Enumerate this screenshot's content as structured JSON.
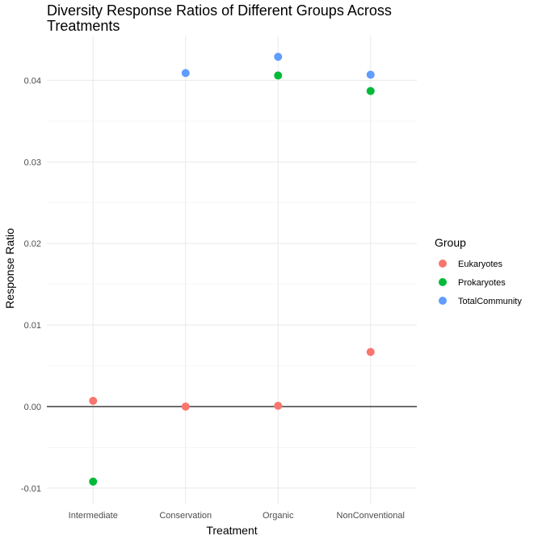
{
  "chart_data": {
    "type": "scatter",
    "title_line1": "Diversity Response Ratios of Different Groups Across",
    "title_line2": "Treatments",
    "xlabel": "Treatment",
    "ylabel": "Response Ratio",
    "categories": [
      "Intermediate",
      "Conservation",
      "Organic",
      "NonConventional"
    ],
    "ylim": [
      -0.012,
      0.0455
    ],
    "yticks": [
      -0.01,
      0.0,
      0.01,
      0.02,
      0.03,
      0.04
    ],
    "ytick_labels": [
      "-0.01",
      "0.00",
      "0.01",
      "0.02",
      "0.03",
      "0.04"
    ],
    "hline": 0,
    "grid": true,
    "legend": {
      "title": "Group",
      "placement": "right"
    },
    "series": [
      {
        "name": "Eukaryotes",
        "color": "#F8766D",
        "values": [
          0.0007,
          0.0,
          0.0001,
          0.0067
        ]
      },
      {
        "name": "Prokaryotes",
        "color": "#00BA38",
        "values": [
          -0.0092,
          null,
          0.0406,
          0.0387
        ]
      },
      {
        "name": "TotalCommunity",
        "color": "#619CFF",
        "values": [
          null,
          0.0409,
          0.0429,
          0.0407
        ]
      }
    ]
  }
}
